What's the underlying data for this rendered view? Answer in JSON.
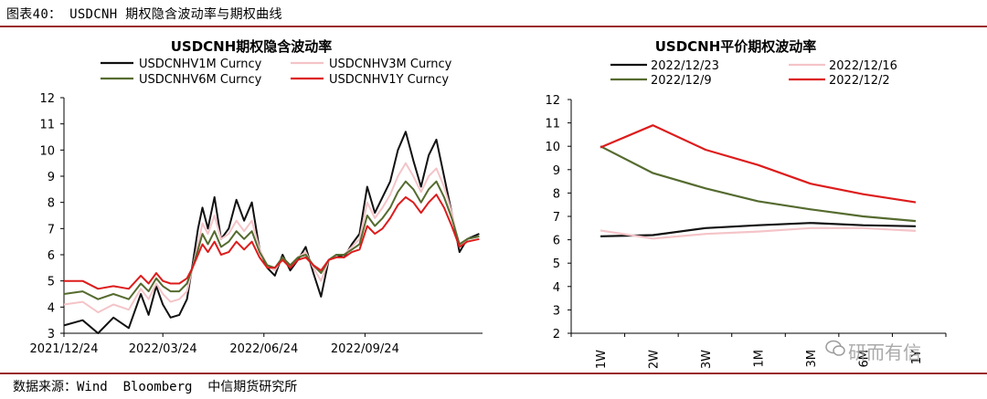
{
  "caption": "图表40： USDCNH 期权隐含波动率与期权曲线",
  "source": "数据来源：Wind  Bloomberg  中信期货研究所",
  "watermark": "研而有信",
  "colors": {
    "black": "#111111",
    "pink": "#f4c4c8",
    "green": "#556b2f",
    "red": "#dd1c1c",
    "rule": "#9a2a2a"
  },
  "chart_data": [
    {
      "type": "line",
      "title": "USDCNH期权隐含波动率",
      "xlabel": "",
      "ylabel": "",
      "ylim": [
        3,
        12
      ],
      "yticks": [
        3,
        4,
        5,
        6,
        7,
        8,
        9,
        10,
        11,
        12
      ],
      "x_range": [
        "2021-12-24",
        "2023-01-09"
      ],
      "x_ticks": [
        {
          "date": "2021-12-24",
          "label": "2021/12/24"
        },
        {
          "date": "2022-03-24",
          "label": "2022/03/24"
        },
        {
          "date": "2022-06-24",
          "label": "2022/06/24"
        },
        {
          "date": "2022-09-24",
          "label": "2022/09/24"
        }
      ],
      "legend_position": "top",
      "series": [
        {
          "name": "USDCNHV1M Curncy",
          "color": "#111111",
          "points": [
            [
              "2021-12-24",
              3.3
            ],
            [
              "2022-01-10",
              3.5
            ],
            [
              "2022-01-24",
              3.0
            ],
            [
              "2022-02-07",
              3.6
            ],
            [
              "2022-02-21",
              3.2
            ],
            [
              "2022-03-04",
              4.5
            ],
            [
              "2022-03-11",
              3.7
            ],
            [
              "2022-03-18",
              4.8
            ],
            [
              "2022-03-24",
              4.1
            ],
            [
              "2022-03-31",
              3.6
            ],
            [
              "2022-04-08",
              3.7
            ],
            [
              "2022-04-15",
              4.3
            ],
            [
              "2022-04-20",
              5.6
            ],
            [
              "2022-04-25",
              7.0
            ],
            [
              "2022-04-29",
              7.8
            ],
            [
              "2022-05-04",
              7.0
            ],
            [
              "2022-05-10",
              8.2
            ],
            [
              "2022-05-16",
              6.6
            ],
            [
              "2022-05-23",
              7.0
            ],
            [
              "2022-05-30",
              8.1
            ],
            [
              "2022-06-06",
              7.3
            ],
            [
              "2022-06-13",
              8.0
            ],
            [
              "2022-06-20",
              6.2
            ],
            [
              "2022-06-27",
              5.5
            ],
            [
              "2022-07-04",
              5.2
            ],
            [
              "2022-07-11",
              6.0
            ],
            [
              "2022-07-18",
              5.4
            ],
            [
              "2022-07-25",
              5.8
            ],
            [
              "2022-08-01",
              6.3
            ],
            [
              "2022-08-08",
              5.3
            ],
            [
              "2022-08-15",
              4.4
            ],
            [
              "2022-08-22",
              5.8
            ],
            [
              "2022-08-29",
              6.0
            ],
            [
              "2022-09-05",
              5.9
            ],
            [
              "2022-09-12",
              6.4
            ],
            [
              "2022-09-19",
              6.8
            ],
            [
              "2022-09-26",
              8.6
            ],
            [
              "2022-10-03",
              7.6
            ],
            [
              "2022-10-10",
              8.2
            ],
            [
              "2022-10-17",
              8.8
            ],
            [
              "2022-10-24",
              10.0
            ],
            [
              "2022-10-31",
              10.7
            ],
            [
              "2022-11-07",
              9.6
            ],
            [
              "2022-11-14",
              8.6
            ],
            [
              "2022-11-21",
              9.8
            ],
            [
              "2022-11-28",
              10.4
            ],
            [
              "2022-12-05",
              9.0
            ],
            [
              "2022-12-12",
              7.6
            ],
            [
              "2022-12-19",
              6.1
            ],
            [
              "2022-12-26",
              6.6
            ],
            [
              "2023-01-06",
              6.8
            ]
          ]
        },
        {
          "name": "USDCNHV3M Curncy",
          "color": "#f4c4c8",
          "points": [
            [
              "2021-12-24",
              4.1
            ],
            [
              "2022-01-10",
              4.2
            ],
            [
              "2022-01-24",
              3.8
            ],
            [
              "2022-02-07",
              4.1
            ],
            [
              "2022-02-21",
              3.9
            ],
            [
              "2022-03-04",
              4.7
            ],
            [
              "2022-03-11",
              4.3
            ],
            [
              "2022-03-18",
              4.9
            ],
            [
              "2022-03-24",
              4.5
            ],
            [
              "2022-03-31",
              4.2
            ],
            [
              "2022-04-08",
              4.3
            ],
            [
              "2022-04-15",
              4.6
            ],
            [
              "2022-04-20",
              5.5
            ],
            [
              "2022-04-25",
              6.4
            ],
            [
              "2022-04-29",
              7.2
            ],
            [
              "2022-05-04",
              6.8
            ],
            [
              "2022-05-10",
              7.5
            ],
            [
              "2022-05-16",
              6.6
            ],
            [
              "2022-05-23",
              6.8
            ],
            [
              "2022-05-30",
              7.3
            ],
            [
              "2022-06-06",
              6.9
            ],
            [
              "2022-06-13",
              7.3
            ],
            [
              "2022-06-20",
              6.2
            ],
            [
              "2022-06-27",
              5.6
            ],
            [
              "2022-07-04",
              5.4
            ],
            [
              "2022-07-11",
              5.9
            ],
            [
              "2022-07-18",
              5.6
            ],
            [
              "2022-07-25",
              5.9
            ],
            [
              "2022-08-01",
              6.1
            ],
            [
              "2022-08-08",
              5.5
            ],
            [
              "2022-08-15",
              5.0
            ],
            [
              "2022-08-22",
              5.8
            ],
            [
              "2022-08-29",
              6.0
            ],
            [
              "2022-09-05",
              6.0
            ],
            [
              "2022-09-12",
              6.3
            ],
            [
              "2022-09-19",
              6.6
            ],
            [
              "2022-09-26",
              8.0
            ],
            [
              "2022-10-03",
              7.4
            ],
            [
              "2022-10-10",
              7.8
            ],
            [
              "2022-10-17",
              8.3
            ],
            [
              "2022-10-24",
              9.0
            ],
            [
              "2022-10-31",
              9.5
            ],
            [
              "2022-11-07",
              9.0
            ],
            [
              "2022-11-14",
              8.4
            ],
            [
              "2022-11-21",
              9.0
            ],
            [
              "2022-11-28",
              9.3
            ],
            [
              "2022-12-05",
              8.6
            ],
            [
              "2022-12-12",
              7.6
            ],
            [
              "2022-12-19",
              6.3
            ],
            [
              "2022-12-26",
              6.6
            ],
            [
              "2023-01-06",
              6.7
            ]
          ]
        },
        {
          "name": "USDCNHV6M Curncy",
          "color": "#556b2f",
          "points": [
            [
              "2021-12-24",
              4.5
            ],
            [
              "2022-01-10",
              4.6
            ],
            [
              "2022-01-24",
              4.3
            ],
            [
              "2022-02-07",
              4.5
            ],
            [
              "2022-02-21",
              4.3
            ],
            [
              "2022-03-04",
              4.9
            ],
            [
              "2022-03-11",
              4.6
            ],
            [
              "2022-03-18",
              5.1
            ],
            [
              "2022-03-24",
              4.8
            ],
            [
              "2022-03-31",
              4.6
            ],
            [
              "2022-04-08",
              4.6
            ],
            [
              "2022-04-15",
              4.9
            ],
            [
              "2022-04-20",
              5.5
            ],
            [
              "2022-04-25",
              6.2
            ],
            [
              "2022-04-29",
              6.8
            ],
            [
              "2022-05-04",
              6.4
            ],
            [
              "2022-05-10",
              6.9
            ],
            [
              "2022-05-16",
              6.3
            ],
            [
              "2022-05-23",
              6.5
            ],
            [
              "2022-05-30",
              6.9
            ],
            [
              "2022-06-06",
              6.6
            ],
            [
              "2022-06-13",
              6.9
            ],
            [
              "2022-06-20",
              6.1
            ],
            [
              "2022-06-27",
              5.6
            ],
            [
              "2022-07-04",
              5.5
            ],
            [
              "2022-07-11",
              5.9
            ],
            [
              "2022-07-18",
              5.6
            ],
            [
              "2022-07-25",
              5.9
            ],
            [
              "2022-08-01",
              6.0
            ],
            [
              "2022-08-08",
              5.6
            ],
            [
              "2022-08-15",
              5.3
            ],
            [
              "2022-08-22",
              5.8
            ],
            [
              "2022-08-29",
              6.0
            ],
            [
              "2022-09-05",
              6.0
            ],
            [
              "2022-09-12",
              6.2
            ],
            [
              "2022-09-19",
              6.4
            ],
            [
              "2022-09-26",
              7.5
            ],
            [
              "2022-10-03",
              7.1
            ],
            [
              "2022-10-10",
              7.4
            ],
            [
              "2022-10-17",
              7.8
            ],
            [
              "2022-10-24",
              8.4
            ],
            [
              "2022-10-31",
              8.8
            ],
            [
              "2022-11-07",
              8.5
            ],
            [
              "2022-11-14",
              8.0
            ],
            [
              "2022-11-21",
              8.5
            ],
            [
              "2022-11-28",
              8.8
            ],
            [
              "2022-12-05",
              8.2
            ],
            [
              "2022-12-12",
              7.4
            ],
            [
              "2022-12-19",
              6.4
            ],
            [
              "2022-12-26",
              6.6
            ],
            [
              "2023-01-06",
              6.7
            ]
          ]
        },
        {
          "name": "USDCNHV1Y Curncy",
          "color": "#dd1c1c",
          "points": [
            [
              "2021-12-24",
              5.0
            ],
            [
              "2022-01-10",
              5.0
            ],
            [
              "2022-01-24",
              4.7
            ],
            [
              "2022-02-07",
              4.8
            ],
            [
              "2022-02-21",
              4.7
            ],
            [
              "2022-03-04",
              5.2
            ],
            [
              "2022-03-11",
              4.9
            ],
            [
              "2022-03-18",
              5.3
            ],
            [
              "2022-03-24",
              5.0
            ],
            [
              "2022-03-31",
              4.9
            ],
            [
              "2022-04-08",
              4.9
            ],
            [
              "2022-04-15",
              5.1
            ],
            [
              "2022-04-20",
              5.5
            ],
            [
              "2022-04-25",
              6.0
            ],
            [
              "2022-04-29",
              6.4
            ],
            [
              "2022-05-04",
              6.1
            ],
            [
              "2022-05-10",
              6.5
            ],
            [
              "2022-05-16",
              6.0
            ],
            [
              "2022-05-23",
              6.1
            ],
            [
              "2022-05-30",
              6.5
            ],
            [
              "2022-06-06",
              6.2
            ],
            [
              "2022-06-13",
              6.5
            ],
            [
              "2022-06-20",
              5.9
            ],
            [
              "2022-06-27",
              5.5
            ],
            [
              "2022-07-04",
              5.5
            ],
            [
              "2022-07-11",
              5.8
            ],
            [
              "2022-07-18",
              5.5
            ],
            [
              "2022-07-25",
              5.8
            ],
            [
              "2022-08-01",
              5.9
            ],
            [
              "2022-08-08",
              5.6
            ],
            [
              "2022-08-15",
              5.4
            ],
            [
              "2022-08-22",
              5.8
            ],
            [
              "2022-08-29",
              5.9
            ],
            [
              "2022-09-05",
              5.9
            ],
            [
              "2022-09-12",
              6.1
            ],
            [
              "2022-09-19",
              6.2
            ],
            [
              "2022-09-26",
              7.1
            ],
            [
              "2022-10-03",
              6.8
            ],
            [
              "2022-10-10",
              7.0
            ],
            [
              "2022-10-17",
              7.4
            ],
            [
              "2022-10-24",
              7.9
            ],
            [
              "2022-10-31",
              8.2
            ],
            [
              "2022-11-07",
              8.0
            ],
            [
              "2022-11-14",
              7.6
            ],
            [
              "2022-11-21",
              8.0
            ],
            [
              "2022-11-28",
              8.3
            ],
            [
              "2022-12-05",
              7.8
            ],
            [
              "2022-12-12",
              7.1
            ],
            [
              "2022-12-19",
              6.3
            ],
            [
              "2022-12-26",
              6.5
            ],
            [
              "2023-01-06",
              6.6
            ]
          ]
        }
      ]
    },
    {
      "type": "line",
      "title": "USDCNH平价期权波动率",
      "xlabel": "",
      "ylabel": "",
      "ylim": [
        2,
        12
      ],
      "yticks": [
        2,
        3,
        4,
        5,
        6,
        7,
        8,
        9,
        10,
        11,
        12
      ],
      "categories": [
        "1W",
        "2W",
        "3W",
        "1M",
        "3M",
        "6M",
        "1Y"
      ],
      "legend_position": "top",
      "series": [
        {
          "name": "2022/12/23",
          "color": "#111111",
          "values": [
            6.15,
            6.2,
            6.5,
            6.62,
            6.72,
            6.62,
            6.58
          ]
        },
        {
          "name": "2022/12/16",
          "color": "#f4c4c8",
          "values": [
            6.4,
            6.05,
            6.25,
            6.35,
            6.5,
            6.5,
            6.38
          ]
        },
        {
          "name": "2022/12/9",
          "color": "#556b2f",
          "values": [
            10.0,
            8.85,
            8.2,
            7.65,
            7.3,
            7.0,
            6.8
          ]
        },
        {
          "name": "2022/12/2",
          "color": "#dd1c1c",
          "values": [
            9.95,
            10.9,
            9.85,
            9.2,
            8.4,
            7.95,
            7.6
          ]
        }
      ]
    }
  ]
}
